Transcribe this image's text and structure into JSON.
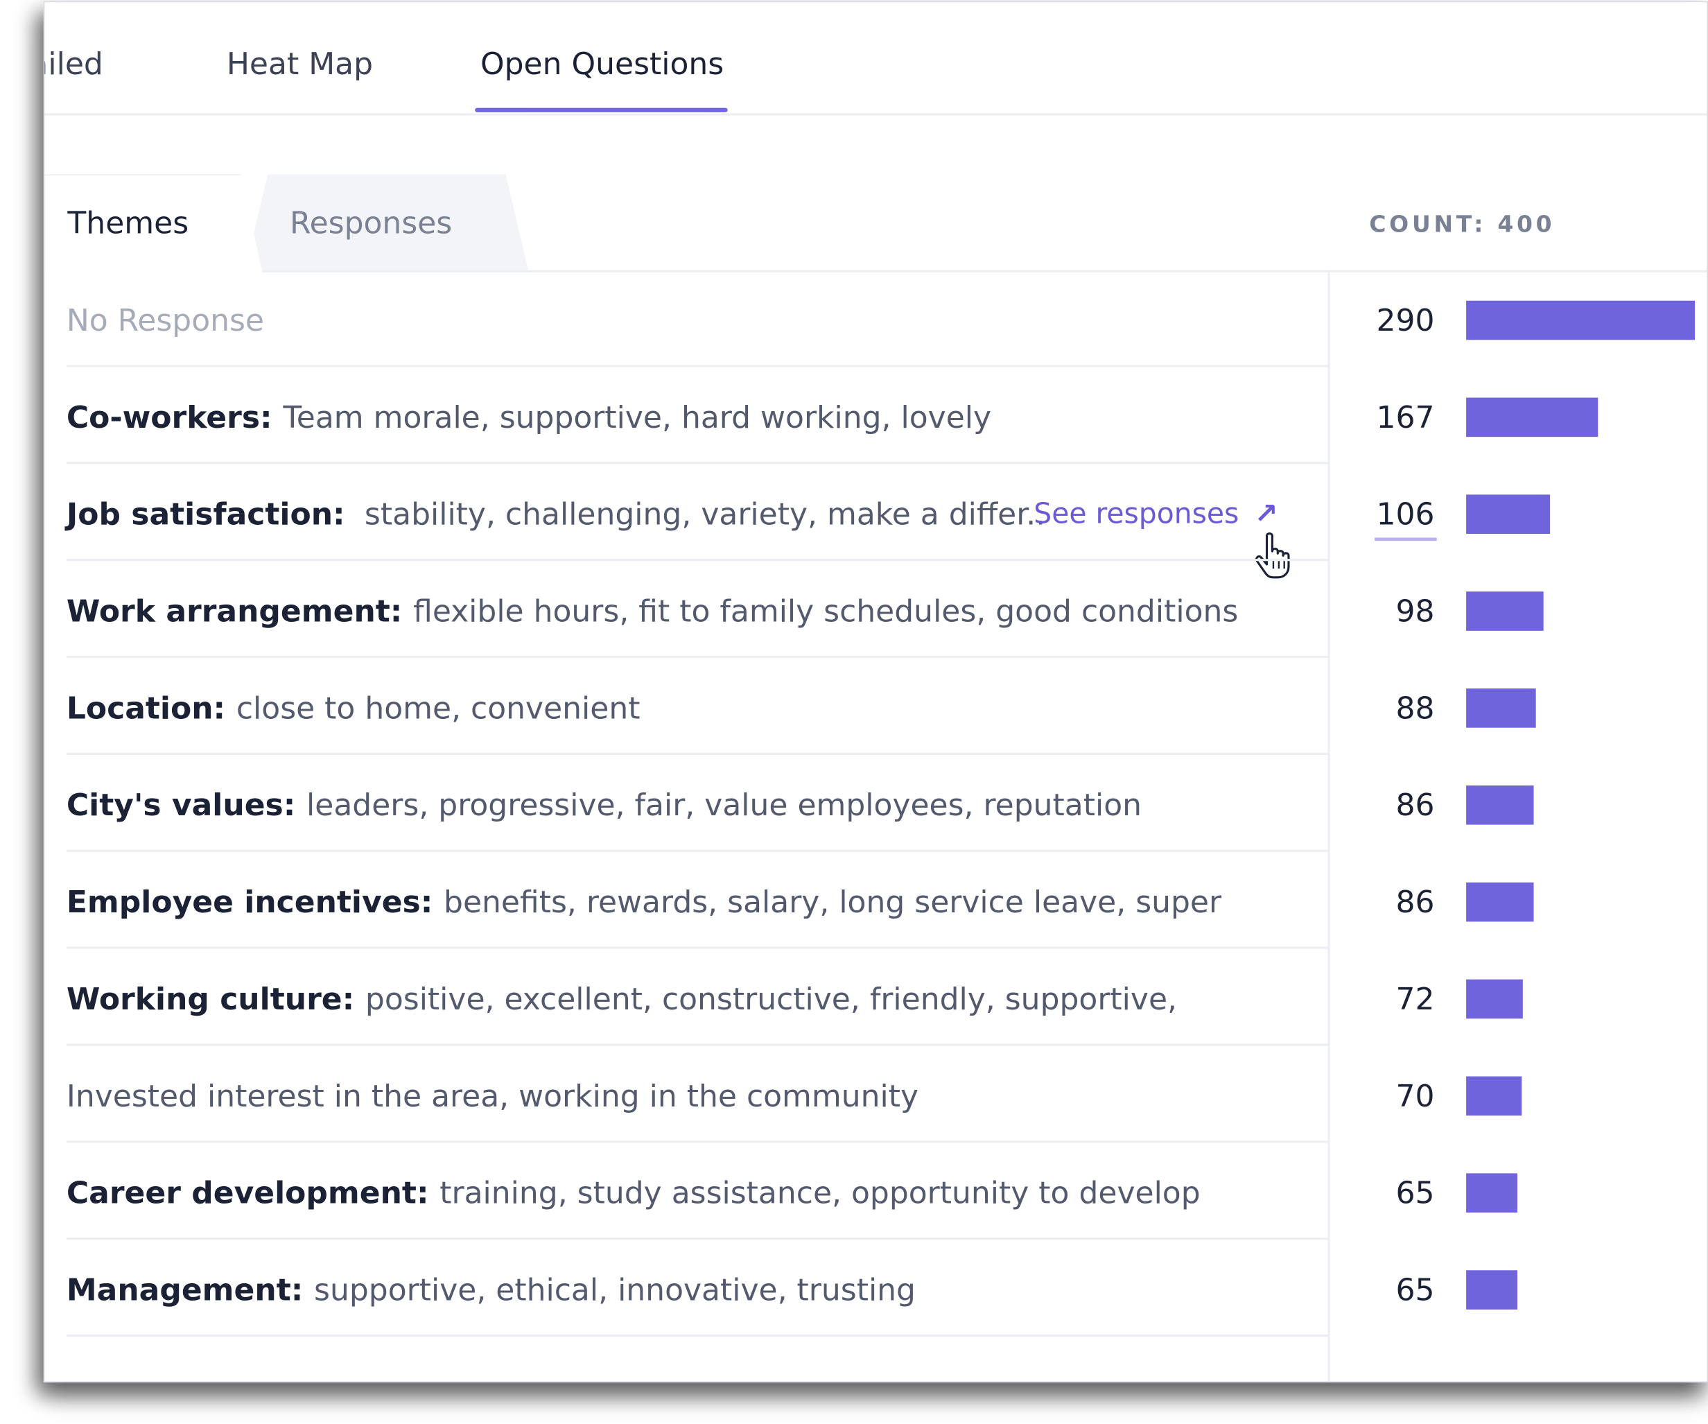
{
  "top_tabs": [
    {
      "label": "ailed"
    },
    {
      "label": "Heat Map"
    },
    {
      "label": "Open Questions",
      "active": true
    }
  ],
  "sub_tabs": [
    {
      "label": "Themes",
      "active": true
    },
    {
      "label": "Responses"
    }
  ],
  "count_label": "COUNT: 400",
  "see_responses_label": "See responses",
  "colors": {
    "accent": "#6f64dc",
    "link": "#6a5ad6"
  },
  "chart_data": {
    "type": "bar",
    "categories": [
      "No Response",
      "Co-workers:",
      "Job satisfaction:",
      "Work arrangement:",
      "Location:",
      "City's values:",
      "Employee incentives:",
      "Working culture:",
      "Invested interest in the area, working in the community",
      "Career development:",
      "Management:"
    ],
    "values": [
      290,
      167,
      106,
      98,
      88,
      86,
      86,
      72,
      70,
      65,
      65
    ]
  },
  "rows": [
    {
      "theme": "",
      "detail": "No Response",
      "count": "290",
      "muted": true
    },
    {
      "theme": "Co-workers:",
      "detail": "Team morale, supportive, hard working, lovely",
      "count": "167"
    },
    {
      "theme": "Job satisfaction:",
      "detail": "stability, challenging, variety, make a differ..",
      "count": "106",
      "hover": true
    },
    {
      "theme": "Work arrangement:",
      "detail": "flexible hours, fit to family schedules, good conditions",
      "count": "98"
    },
    {
      "theme": "Location:",
      "detail": "close to home, convenient",
      "count": "88"
    },
    {
      "theme": "City's values:",
      "detail": "leaders, progressive, fair, value employees, reputation",
      "count": "86"
    },
    {
      "theme": "Employee incentives:",
      "detail": "benefits, rewards, salary, long service leave, super",
      "count": "86"
    },
    {
      "theme": "Working culture:",
      "detail": "positive, excellent, constructive, friendly, supportive,",
      "count": "72"
    },
    {
      "theme": "",
      "detail": "Invested interest in the area, working in the community",
      "count": "70"
    },
    {
      "theme": "Career development:",
      "detail": "training, study assistance, opportunity to develop",
      "count": "65"
    },
    {
      "theme": "Management:",
      "detail": "supportive, ethical, innovative, trusting",
      "count": "65"
    }
  ]
}
